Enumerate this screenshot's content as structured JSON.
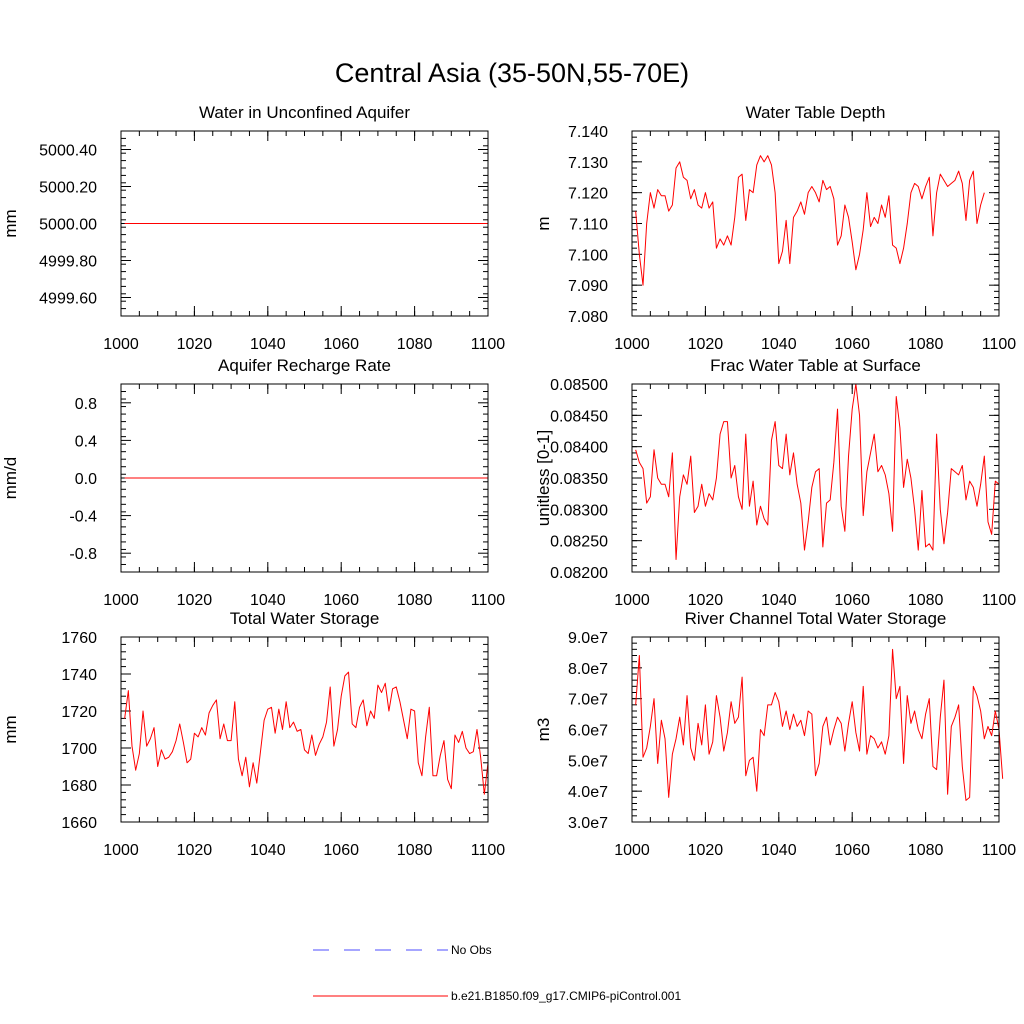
{
  "figure": {
    "title": "Central Asia (35-50N,55-70E)"
  },
  "chart_data": [
    {
      "id": "aquifer",
      "type": "line",
      "title": "Water in Unconfined Aquifer",
      "xlabel": "",
      "ylabel": "mm",
      "xlim": [
        1000,
        1100
      ],
      "ylim": [
        4999.5,
        5000.5
      ],
      "xticks": [
        1000,
        1020,
        1040,
        1060,
        1080,
        1100
      ],
      "yticks": [
        4999.6,
        4999.8,
        5000.0,
        5000.2,
        5000.4
      ],
      "yticklabels": [
        "4999.60",
        "4999.80",
        "5000.00",
        "5000.20",
        "5000.40"
      ],
      "x_start": 1001,
      "values": [
        5000,
        5000,
        5000,
        5000,
        5000,
        5000,
        5000,
        5000,
        5000,
        5000,
        5000,
        5000,
        5000,
        5000,
        5000,
        5000,
        5000,
        5000,
        5000,
        5000,
        5000,
        5000,
        5000,
        5000,
        5000,
        5000,
        5000,
        5000,
        5000,
        5000,
        5000,
        5000,
        5000,
        5000,
        5000,
        5000,
        5000,
        5000,
        5000,
        5000,
        5000,
        5000,
        5000,
        5000,
        5000,
        5000,
        5000,
        5000,
        5000,
        5000,
        5000,
        5000,
        5000,
        5000,
        5000,
        5000,
        5000,
        5000,
        5000,
        5000,
        5000,
        5000,
        5000,
        5000,
        5000,
        5000,
        5000,
        5000,
        5000,
        5000,
        5000,
        5000,
        5000,
        5000,
        5000,
        5000,
        5000,
        5000,
        5000,
        5000,
        5000,
        5000,
        5000,
        5000,
        5000,
        5000,
        5000,
        5000,
        5000,
        5000,
        5000,
        5000,
        5000,
        5000,
        5000,
        5000,
        5000,
        5000,
        5000,
        5000
      ]
    },
    {
      "id": "wtd",
      "type": "line",
      "title": "Water Table Depth",
      "xlabel": "",
      "ylabel": "m",
      "xlim": [
        1000,
        1100
      ],
      "ylim": [
        7.08,
        7.14
      ],
      "xticks": [
        1000,
        1020,
        1040,
        1060,
        1080,
        1100
      ],
      "yticks": [
        7.08,
        7.09,
        7.1,
        7.11,
        7.12,
        7.13,
        7.14
      ],
      "yticklabels": [
        "7.080",
        "7.090",
        "7.100",
        "7.110",
        "7.120",
        "7.130",
        "7.140"
      ],
      "x_start": 1001,
      "values": [
        7.114,
        7.1,
        7.09,
        7.11,
        7.12,
        7.115,
        7.121,
        7.119,
        7.119,
        7.114,
        7.116,
        7.128,
        7.13,
        7.125,
        7.124,
        7.118,
        7.121,
        7.116,
        7.115,
        7.12,
        7.115,
        7.117,
        7.102,
        7.105,
        7.103,
        7.106,
        7.103,
        7.112,
        7.125,
        7.126,
        7.111,
        7.121,
        7.12,
        7.129,
        7.132,
        7.13,
        7.132,
        7.129,
        7.12,
        7.097,
        7.101,
        7.111,
        7.097,
        7.112,
        7.114,
        7.117,
        7.113,
        7.12,
        7.122,
        7.12,
        7.117,
        7.124,
        7.121,
        7.122,
        7.118,
        7.103,
        7.106,
        7.116,
        7.112,
        7.104,
        7.095,
        7.1,
        7.108,
        7.12,
        7.109,
        7.112,
        7.11,
        7.116,
        7.112,
        7.119,
        7.103,
        7.102,
        7.097,
        7.102,
        7.11,
        7.12,
        7.123,
        7.122,
        7.118,
        7.122,
        7.125,
        7.106,
        7.12,
        7.126,
        7.124,
        7.122,
        7.123,
        7.124,
        7.127,
        7.123,
        7.111,
        7.124,
        7.127,
        7.11,
        7.116,
        7.12
      ]
    },
    {
      "id": "recharge",
      "type": "line",
      "title": "Aquifer Recharge Rate",
      "xlabel": "",
      "ylabel": "mm/d",
      "xlim": [
        1000,
        1100
      ],
      "ylim": [
        -1,
        1
      ],
      "xticks": [
        1000,
        1020,
        1040,
        1060,
        1080,
        1100
      ],
      "yticks": [
        -0.8,
        -0.4,
        0,
        0.4,
        0.8
      ],
      "yticklabels": [
        "-0.8",
        "-0.4",
        "0.0",
        "0.4",
        "0.8"
      ],
      "x_start": 1001,
      "values": [
        0,
        0,
        0,
        0,
        0,
        0,
        0,
        0,
        0,
        0,
        0,
        0,
        0,
        0,
        0,
        0,
        0,
        0,
        0,
        0,
        0,
        0,
        0,
        0,
        0,
        0,
        0,
        0,
        0,
        0,
        0,
        0,
        0,
        0,
        0,
        0,
        0,
        0,
        0,
        0,
        0,
        0,
        0,
        0,
        0,
        0,
        0,
        0,
        0,
        0,
        0,
        0,
        0,
        0,
        0,
        0,
        0,
        0,
        0,
        0,
        0,
        0,
        0,
        0,
        0,
        0,
        0,
        0,
        0,
        0,
        0,
        0,
        0,
        0,
        0,
        0,
        0,
        0,
        0,
        0,
        0,
        0,
        0,
        0,
        0,
        0,
        0,
        0,
        0,
        0,
        0,
        0,
        0,
        0,
        0,
        0,
        0,
        0,
        0,
        0
      ]
    },
    {
      "id": "fwet",
      "type": "line",
      "title": "Frac Water Table at Surface",
      "xlabel": "",
      "ylabel": "unitless [0-1]",
      "xlim": [
        1000,
        1100
      ],
      "ylim": [
        0.082,
        0.085
      ],
      "xticks": [
        1000,
        1020,
        1040,
        1060,
        1080,
        1100
      ],
      "yticks": [
        0.082,
        0.0825,
        0.083,
        0.0835,
        0.084,
        0.0845,
        0.085
      ],
      "yticklabels": [
        "0.08200",
        "0.08250",
        "0.08300",
        "0.08350",
        "0.08400",
        "0.08450",
        "0.08500"
      ],
      "x_start": 1001,
      "values": [
        0.08395,
        0.08375,
        0.08365,
        0.0831,
        0.0832,
        0.08395,
        0.0835,
        0.0834,
        0.0834,
        0.0832,
        0.0839,
        0.0822,
        0.0832,
        0.08355,
        0.0834,
        0.08385,
        0.08295,
        0.08305,
        0.0834,
        0.08305,
        0.08325,
        0.08315,
        0.0835,
        0.0842,
        0.0844,
        0.0844,
        0.0835,
        0.0837,
        0.0832,
        0.083,
        0.0842,
        0.08305,
        0.08345,
        0.08275,
        0.08305,
        0.08285,
        0.08275,
        0.0841,
        0.0844,
        0.0837,
        0.08365,
        0.0842,
        0.08355,
        0.0839,
        0.0834,
        0.0831,
        0.08235,
        0.0828,
        0.08335,
        0.0836,
        0.08365,
        0.0824,
        0.0831,
        0.08315,
        0.08375,
        0.0846,
        0.08305,
        0.08265,
        0.08385,
        0.0846,
        0.085,
        0.0845,
        0.0829,
        0.0836,
        0.0839,
        0.0842,
        0.0836,
        0.0837,
        0.08355,
        0.08325,
        0.08265,
        0.0848,
        0.0843,
        0.08335,
        0.0838,
        0.0835,
        0.083,
        0.08235,
        0.0833,
        0.0824,
        0.08245,
        0.08235,
        0.0842,
        0.083,
        0.08245,
        0.08295,
        0.08365,
        0.0836,
        0.08355,
        0.0837,
        0.08315,
        0.08345,
        0.08335,
        0.08305,
        0.0834,
        0.08385,
        0.0828,
        0.0826,
        0.08345,
        0.0834
      ]
    },
    {
      "id": "tws",
      "type": "line",
      "title": "Total Water Storage",
      "xlabel": "",
      "ylabel": "mm",
      "xlim": [
        1000,
        1100
      ],
      "ylim": [
        1660,
        1760
      ],
      "xticks": [
        1000,
        1020,
        1040,
        1060,
        1080,
        1100
      ],
      "yticks": [
        1660,
        1680,
        1700,
        1720,
        1740,
        1760
      ],
      "yticklabels": [
        "1660",
        "1680",
        "1700",
        "1720",
        "1740",
        "1760"
      ],
      "x_start": 1001,
      "values": [
        1716,
        1731,
        1701,
        1688,
        1697,
        1720,
        1701,
        1705,
        1711,
        1690,
        1699,
        1694,
        1695,
        1698,
        1704,
        1713,
        1703,
        1692,
        1694,
        1708,
        1706,
        1711,
        1707,
        1719,
        1723,
        1726,
        1705,
        1713,
        1704,
        1704,
        1725,
        1694,
        1685,
        1695,
        1679,
        1692,
        1681,
        1698,
        1715,
        1721,
        1722,
        1708,
        1721,
        1710,
        1725,
        1711,
        1714,
        1709,
        1710,
        1699,
        1697,
        1707,
        1696,
        1702,
        1706,
        1714,
        1733,
        1701,
        1710,
        1728,
        1739,
        1741,
        1713,
        1711,
        1722,
        1726,
        1712,
        1720,
        1716,
        1734,
        1730,
        1735,
        1720,
        1732,
        1733,
        1725,
        1715,
        1705,
        1721,
        1720,
        1692,
        1685,
        1706,
        1722,
        1685,
        1685,
        1696,
        1704,
        1683,
        1678,
        1707,
        1703,
        1709,
        1700,
        1697,
        1698,
        1710,
        1695,
        1675,
        1692
      ]
    },
    {
      "id": "rivstor",
      "type": "line",
      "title": "River Channel Total Water Storage",
      "xlabel": "",
      "ylabel": "m3",
      "xlim": [
        1000,
        1100
      ],
      "ylim": [
        30000000,
        90000000
      ],
      "xticks": [
        1000,
        1020,
        1040,
        1060,
        1080,
        1100
      ],
      "yticks": [
        30000000,
        40000000,
        50000000,
        60000000,
        70000000,
        80000000,
        90000000
      ],
      "yticklabels": [
        "3.0e7",
        "4.0e7",
        "5.0e7",
        "6.0e7",
        "7.0e7",
        "8.0e7",
        "9.0e7"
      ],
      "x_start": 1001,
      "values": [
        68000000,
        84000000,
        51000000,
        54000000,
        61000000,
        70000000,
        49000000,
        63000000,
        57000000,
        38000000,
        52000000,
        57000000,
        64000000,
        55000000,
        71000000,
        54000000,
        50000000,
        62000000,
        55000000,
        68000000,
        52000000,
        56000000,
        71000000,
        64000000,
        53000000,
        59000000,
        69000000,
        62000000,
        64000000,
        77000000,
        45000000,
        50000000,
        51000000,
        40000000,
        60000000,
        58000000,
        68000000,
        68000000,
        72000000,
        69000000,
        61000000,
        66000000,
        60000000,
        65000000,
        61000000,
        63000000,
        58000000,
        66000000,
        65000000,
        45000000,
        49000000,
        61000000,
        64000000,
        55000000,
        60000000,
        64000000,
        62000000,
        53000000,
        62000000,
        69000000,
        59000000,
        53000000,
        74000000,
        52000000,
        58000000,
        57000000,
        54000000,
        56000000,
        52000000,
        58000000,
        86000000,
        70000000,
        74000000,
        49000000,
        71000000,
        62000000,
        66000000,
        60000000,
        57000000,
        65000000,
        70000000,
        48000000,
        47000000,
        64000000,
        76000000,
        39000000,
        61000000,
        64000000,
        68000000,
        48000000,
        37000000,
        38000000,
        74000000,
        71000000,
        66000000,
        57000000,
        61000000,
        58000000,
        66000000,
        60000000,
        44000000
      ]
    }
  ],
  "legend": {
    "items": [
      {
        "label": "No Obs",
        "style": "dashed",
        "color": "#4d4dff"
      },
      {
        "label": "b.e21.B1850.f09_g17.CMIP6-piControl.001",
        "style": "solid",
        "color": "#ff0000"
      }
    ]
  },
  "colors": {
    "series": "#ff0000",
    "axes": "#000000",
    "background": "#ffffff"
  }
}
